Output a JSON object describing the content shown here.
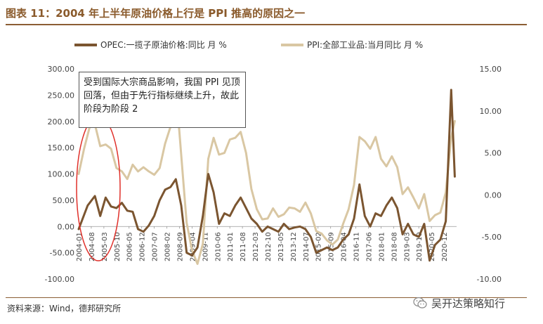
{
  "title": "图表 11：2004 年上半年原油价格上行是 PPI 推高的原因之一",
  "annotation": "受到国际大宗商品影响，我国 PPI 见顶回落，但由于先行指标继续上升，故此阶段为阶段 2",
  "source": "资料来源：Wind，德邦研究所",
  "watermark": "吴开达策略知行",
  "colors": {
    "opec": "#7b5530",
    "ppi": "#d9c7a3",
    "title": "#8a5a2b",
    "ellipse": "#e0302a"
  },
  "chart_data": {
    "type": "line",
    "legend_position": "top",
    "grid": false,
    "y_left": {
      "min": -100,
      "max": 300,
      "ticks": [
        "-100.00",
        "-50.00",
        "0.00",
        "50.00",
        "100.00",
        "150.00",
        "200.00",
        "250.00",
        "300.00"
      ]
    },
    "y_right": {
      "min": -10,
      "max": 15,
      "ticks": [
        "-10.00",
        "-5.00",
        "0.00",
        "5.00",
        "10.00",
        "15.00"
      ]
    },
    "x_ticks": [
      "2004-01",
      "2004-08",
      "2005-03",
      "2005-10",
      "2006-05",
      "2006-12",
      "2007-07",
      "2008-02",
      "2008-09",
      "2009-04",
      "2009-11",
      "2010-06",
      "2011-01",
      "2011-08",
      "2012-03",
      "2012-10",
      "2013-05",
      "2013-12",
      "2014-07",
      "2015-02",
      "2015-09",
      "2016-04",
      "2016-11",
      "2017-06",
      "2018-01",
      "2018-08",
      "2019-03",
      "2019-10",
      "2020-05",
      "2020-12"
    ],
    "series": [
      {
        "name": "OPEC:一揽子原油价格:同比 月 %",
        "axis": "left",
        "points": [
          [
            "2004-01",
            -5
          ],
          [
            "2004-06",
            40
          ],
          [
            "2004-10",
            58
          ],
          [
            "2005-01",
            20
          ],
          [
            "2005-04",
            55
          ],
          [
            "2005-07",
            38
          ],
          [
            "2005-10",
            35
          ],
          [
            "2006-01",
            45
          ],
          [
            "2006-04",
            30
          ],
          [
            "2006-07",
            28
          ],
          [
            "2006-10",
            -5
          ],
          [
            "2007-01",
            -10
          ],
          [
            "2007-04",
            2
          ],
          [
            "2007-07",
            20
          ],
          [
            "2007-10",
            50
          ],
          [
            "2008-01",
            70
          ],
          [
            "2008-04",
            75
          ],
          [
            "2008-07",
            90
          ],
          [
            "2008-10",
            40
          ],
          [
            "2009-01",
            -50
          ],
          [
            "2009-04",
            -55
          ],
          [
            "2009-07",
            -40
          ],
          [
            "2009-10",
            20
          ],
          [
            "2010-01",
            100
          ],
          [
            "2010-04",
            65
          ],
          [
            "2010-07",
            5
          ],
          [
            "2010-10",
            25
          ],
          [
            "2011-01",
            20
          ],
          [
            "2011-04",
            40
          ],
          [
            "2011-07",
            55
          ],
          [
            "2011-10",
            35
          ],
          [
            "2012-01",
            15
          ],
          [
            "2012-04",
            5
          ],
          [
            "2012-07",
            -10
          ],
          [
            "2012-10",
            0
          ],
          [
            "2013-01",
            -5
          ],
          [
            "2013-04",
            -10
          ],
          [
            "2013-07",
            5
          ],
          [
            "2013-10",
            -5
          ],
          [
            "2014-01",
            -2
          ],
          [
            "2014-04",
            0
          ],
          [
            "2014-07",
            -5
          ],
          [
            "2014-10",
            -20
          ],
          [
            "2015-01",
            -50
          ],
          [
            "2015-04",
            -45
          ],
          [
            "2015-07",
            -40
          ],
          [
            "2015-10",
            -45
          ],
          [
            "2016-01",
            -40
          ],
          [
            "2016-04",
            -25
          ],
          [
            "2016-07",
            -15
          ],
          [
            "2016-10",
            15
          ],
          [
            "2017-01",
            80
          ],
          [
            "2017-04",
            20
          ],
          [
            "2017-07",
            0
          ],
          [
            "2017-10",
            25
          ],
          [
            "2018-01",
            20
          ],
          [
            "2018-04",
            40
          ],
          [
            "2018-07",
            55
          ],
          [
            "2018-10",
            35
          ],
          [
            "2019-01",
            -15
          ],
          [
            "2019-04",
            5
          ],
          [
            "2019-07",
            -15
          ],
          [
            "2019-10",
            -20
          ],
          [
            "2020-01",
            5
          ],
          [
            "2020-04",
            -65
          ],
          [
            "2020-07",
            -35
          ],
          [
            "2020-10",
            -25
          ],
          [
            "2021-01",
            10
          ],
          [
            "2021-04",
            260
          ],
          [
            "2021-06",
            95
          ]
        ]
      },
      {
        "name": "PPI:全部工业品:当月同比 月 %",
        "axis": "right",
        "points": [
          [
            "2004-01",
            2.5
          ],
          [
            "2004-04",
            5.5
          ],
          [
            "2004-07",
            8.0
          ],
          [
            "2004-10",
            8.4
          ],
          [
            "2005-01",
            5.8
          ],
          [
            "2005-04",
            6.0
          ],
          [
            "2005-07",
            5.5
          ],
          [
            "2005-10",
            3.2
          ],
          [
            "2006-01",
            2.8
          ],
          [
            "2006-04",
            1.9
          ],
          [
            "2006-07",
            3.6
          ],
          [
            "2006-10",
            2.8
          ],
          [
            "2007-01",
            3.3
          ],
          [
            "2007-04",
            2.8
          ],
          [
            "2007-07",
            2.4
          ],
          [
            "2007-10",
            3.2
          ],
          [
            "2008-01",
            6.1
          ],
          [
            "2008-04",
            8.1
          ],
          [
            "2008-08",
            10.1
          ],
          [
            "2008-11",
            2.0
          ],
          [
            "2009-01",
            -3.3
          ],
          [
            "2009-04",
            -6.6
          ],
          [
            "2009-07",
            -8.2
          ],
          [
            "2009-10",
            -5.8
          ],
          [
            "2010-01",
            4.3
          ],
          [
            "2010-04",
            6.8
          ],
          [
            "2010-07",
            4.8
          ],
          [
            "2010-10",
            5.0
          ],
          [
            "2011-01",
            6.6
          ],
          [
            "2011-04",
            6.8
          ],
          [
            "2011-07",
            7.5
          ],
          [
            "2011-10",
            5.0
          ],
          [
            "2012-01",
            0.7
          ],
          [
            "2012-04",
            -1.7
          ],
          [
            "2012-07",
            -2.9
          ],
          [
            "2012-10",
            -2.8
          ],
          [
            "2013-01",
            -1.6
          ],
          [
            "2013-04",
            -2.6
          ],
          [
            "2013-07",
            -2.3
          ],
          [
            "2013-10",
            -1.5
          ],
          [
            "2014-01",
            -1.6
          ],
          [
            "2014-04",
            -2.0
          ],
          [
            "2014-07",
            -0.9
          ],
          [
            "2014-10",
            -2.2
          ],
          [
            "2015-01",
            -4.3
          ],
          [
            "2015-04",
            -4.6
          ],
          [
            "2015-07",
            -5.4
          ],
          [
            "2015-10",
            -5.9
          ],
          [
            "2016-01",
            -5.3
          ],
          [
            "2016-04",
            -3.4
          ],
          [
            "2016-07",
            -1.7
          ],
          [
            "2016-10",
            1.2
          ],
          [
            "2017-01",
            6.9
          ],
          [
            "2017-04",
            6.4
          ],
          [
            "2017-07",
            5.5
          ],
          [
            "2017-10",
            6.9
          ],
          [
            "2018-01",
            4.3
          ],
          [
            "2018-04",
            3.4
          ],
          [
            "2018-07",
            4.6
          ],
          [
            "2018-10",
            3.3
          ],
          [
            "2019-01",
            0.1
          ],
          [
            "2019-04",
            0.9
          ],
          [
            "2019-07",
            -0.3
          ],
          [
            "2019-10",
            -1.6
          ],
          [
            "2020-01",
            0.1
          ],
          [
            "2020-04",
            -3.1
          ],
          [
            "2020-07",
            -2.4
          ],
          [
            "2020-10",
            -2.1
          ],
          [
            "2021-01",
            0.3
          ],
          [
            "2021-04",
            6.8
          ],
          [
            "2021-06",
            8.8
          ]
        ]
      }
    ]
  }
}
